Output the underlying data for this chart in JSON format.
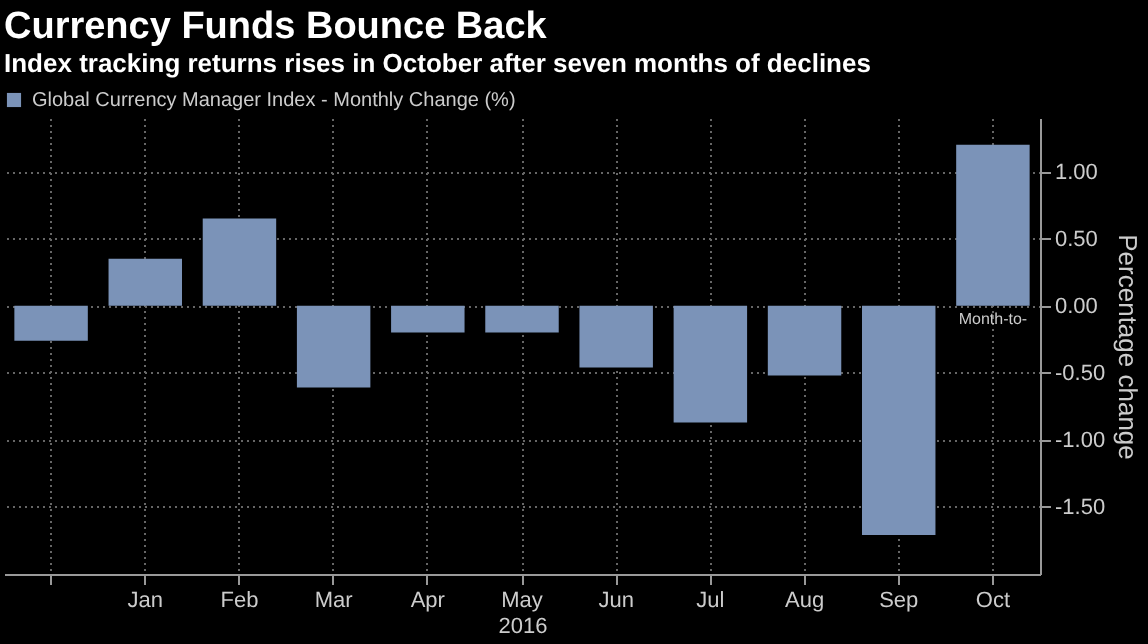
{
  "chart_data": {
    "type": "bar",
    "title": "Currency Funds Bounce Back",
    "subtitle": "Index tracking returns rises in October after seven months of declines",
    "xlabel": "2016",
    "ylabel": "Percentage change",
    "categories": [
      null,
      "Jan",
      "Feb",
      "Mar",
      "Apr",
      "May",
      "Jun",
      "Jul",
      "Aug",
      "Sep",
      "Oct"
    ],
    "series": [
      {
        "name": "Global Currency Manager Index - Monthly Change (%)",
        "color": "#7b93b8",
        "values": [
          -0.26,
          0.35,
          0.65,
          -0.61,
          -0.2,
          -0.2,
          -0.46,
          -0.87,
          -0.52,
          -1.71,
          1.2
        ]
      }
    ],
    "ylim": [
      -2.0,
      1.4
    ],
    "yticks": [
      {
        "value": -1.5,
        "label": "-1.50"
      },
      {
        "value": -1.0,
        "label": "-1.00"
      },
      {
        "value": -0.5,
        "label": "-0.50"
      },
      {
        "value": 0,
        "label": "0.00"
      },
      {
        "value": 0.5,
        "label": "0.50"
      },
      {
        "value": 1.0,
        "label": "1.00"
      }
    ],
    "annotations": [
      {
        "text": "Month-to-",
        "x": "Oct",
        "y": 0
      }
    ],
    "grid": true,
    "legend": "top left"
  }
}
